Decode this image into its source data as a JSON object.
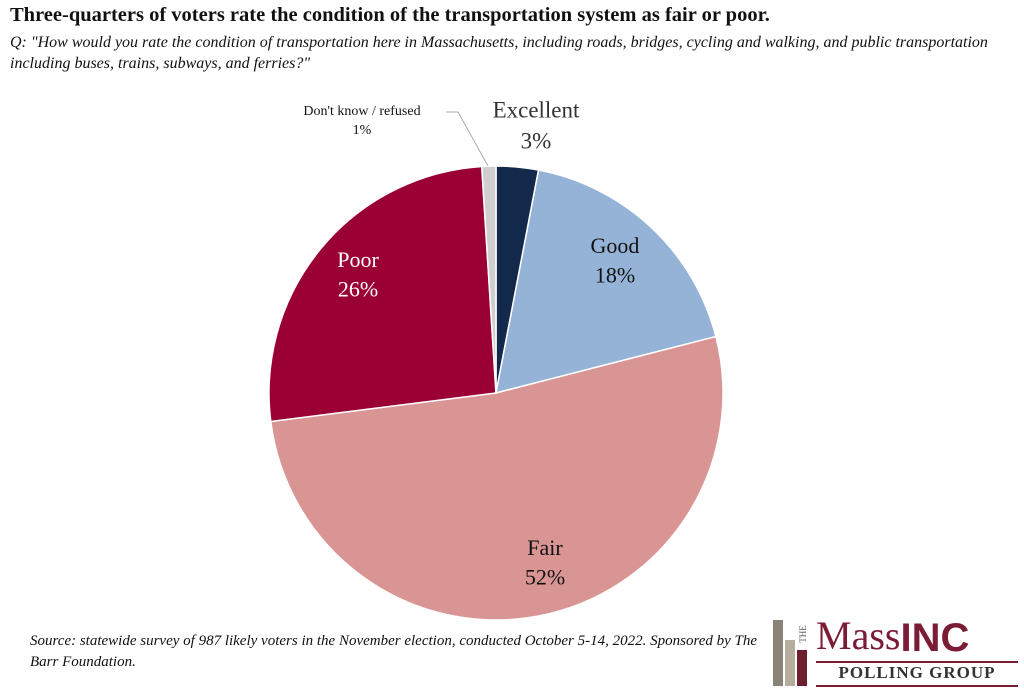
{
  "chart_data": {
    "type": "pie",
    "title": "Three-quarters of voters rate the condition of the transportation system as fair or poor.",
    "subtitle": "Q: \"How would you rate the condition of transportation here in Massachusetts, including roads, bridges, cycling and walking, and public transportation including buses, trains, subways, and ferries?\"",
    "categories": [
      "Excellent",
      "Good",
      "Fair",
      "Poor",
      "Don't know / refused"
    ],
    "values": [
      3,
      18,
      52,
      26,
      1
    ],
    "value_labels": [
      "3%",
      "18%",
      "52%",
      "26%",
      "1%"
    ],
    "colors": [
      "#13294b",
      "#95b3d7",
      "#d99594",
      "#9b0034",
      "#d0cece"
    ],
    "source": "Source: statewide survey of 987 likely voters in the November election, conducted October 5-14, 2022. Sponsored by The Barr Foundation."
  },
  "logo": {
    "the": "THE",
    "mass": "Mass",
    "inc": "INC",
    "group": "POLLING GROUP"
  }
}
